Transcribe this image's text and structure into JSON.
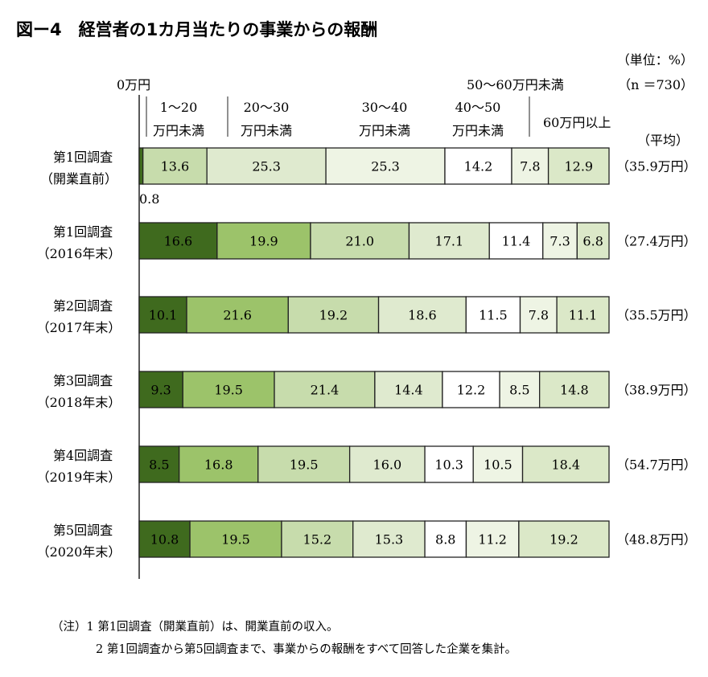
{
  "title": "図ー4　経営者の1カ月当たりの事業からの報酬",
  "unit": "（単位：%）",
  "n": "（n ＝730）",
  "zero_label": "0万円",
  "avg_header": "（平均）",
  "category_labels": [
    [
      "1～20",
      "万円未満"
    ],
    [
      "20～30",
      "万円未満"
    ],
    [
      "30～40",
      "万円未満"
    ],
    [
      "40～50",
      "万円未満"
    ],
    [
      "50～60万円未満"
    ],
    [
      "60万円以上"
    ]
  ],
  "chart_data": {
    "type": "bar",
    "orientation": "horizontal",
    "stacked": true,
    "normalized": true,
    "categories": [
      "0万円",
      "1～20万円未満",
      "20～30万円未満",
      "30～40万円未満",
      "40～50万円未満",
      "50～60万円未満",
      "60万円以上"
    ],
    "colors": [
      "#3f6a1e",
      "#8db658",
      "#c4d9a6",
      "#dbe8c8",
      "#eef4e4",
      "#ffffff",
      "#eef4e4",
      "#dbe8c8"
    ],
    "rows": [
      {
        "label": [
          "第1回調査",
          "（開業直前）"
        ],
        "average": "（35.9万円）",
        "values": [
          0.8,
          13.6,
          25.3,
          25.3,
          14.2,
          7.8,
          12.9
        ],
        "first_label_outside": "0.8"
      },
      {
        "label": [
          "第1回調査",
          "（2016年末）"
        ],
        "average": "（27.4万円）",
        "values": [
          16.6,
          19.9,
          21.0,
          17.1,
          11.4,
          7.3,
          6.8
        ]
      },
      {
        "label": [
          "第2回調査",
          "（2017年末）"
        ],
        "average": "（35.5万円）",
        "values": [
          10.1,
          21.6,
          19.2,
          18.6,
          11.5,
          7.8,
          11.1
        ]
      },
      {
        "label": [
          "第3回調査",
          "（2018年末）"
        ],
        "average": "（38.9万円）",
        "values": [
          9.3,
          19.5,
          21.4,
          14.4,
          12.2,
          8.5,
          14.8
        ]
      },
      {
        "label": [
          "第4回調査",
          "（2019年末）"
        ],
        "average": "（54.7万円）",
        "values": [
          8.5,
          16.8,
          19.5,
          16.0,
          10.3,
          10.5,
          18.4
        ]
      },
      {
        "label": [
          "第5回調査",
          "（2020年末）"
        ],
        "average": "（48.8万円）",
        "values": [
          10.8,
          19.5,
          15.2,
          15.3,
          8.8,
          11.2,
          19.2
        ]
      }
    ]
  },
  "notes": [
    "（注）1  第1回調査（開業直前）は、開業直前の収入。",
    "2  第1回調査から第5回調査まで、事業からの報酬をすべて回答した企業を集計。"
  ]
}
